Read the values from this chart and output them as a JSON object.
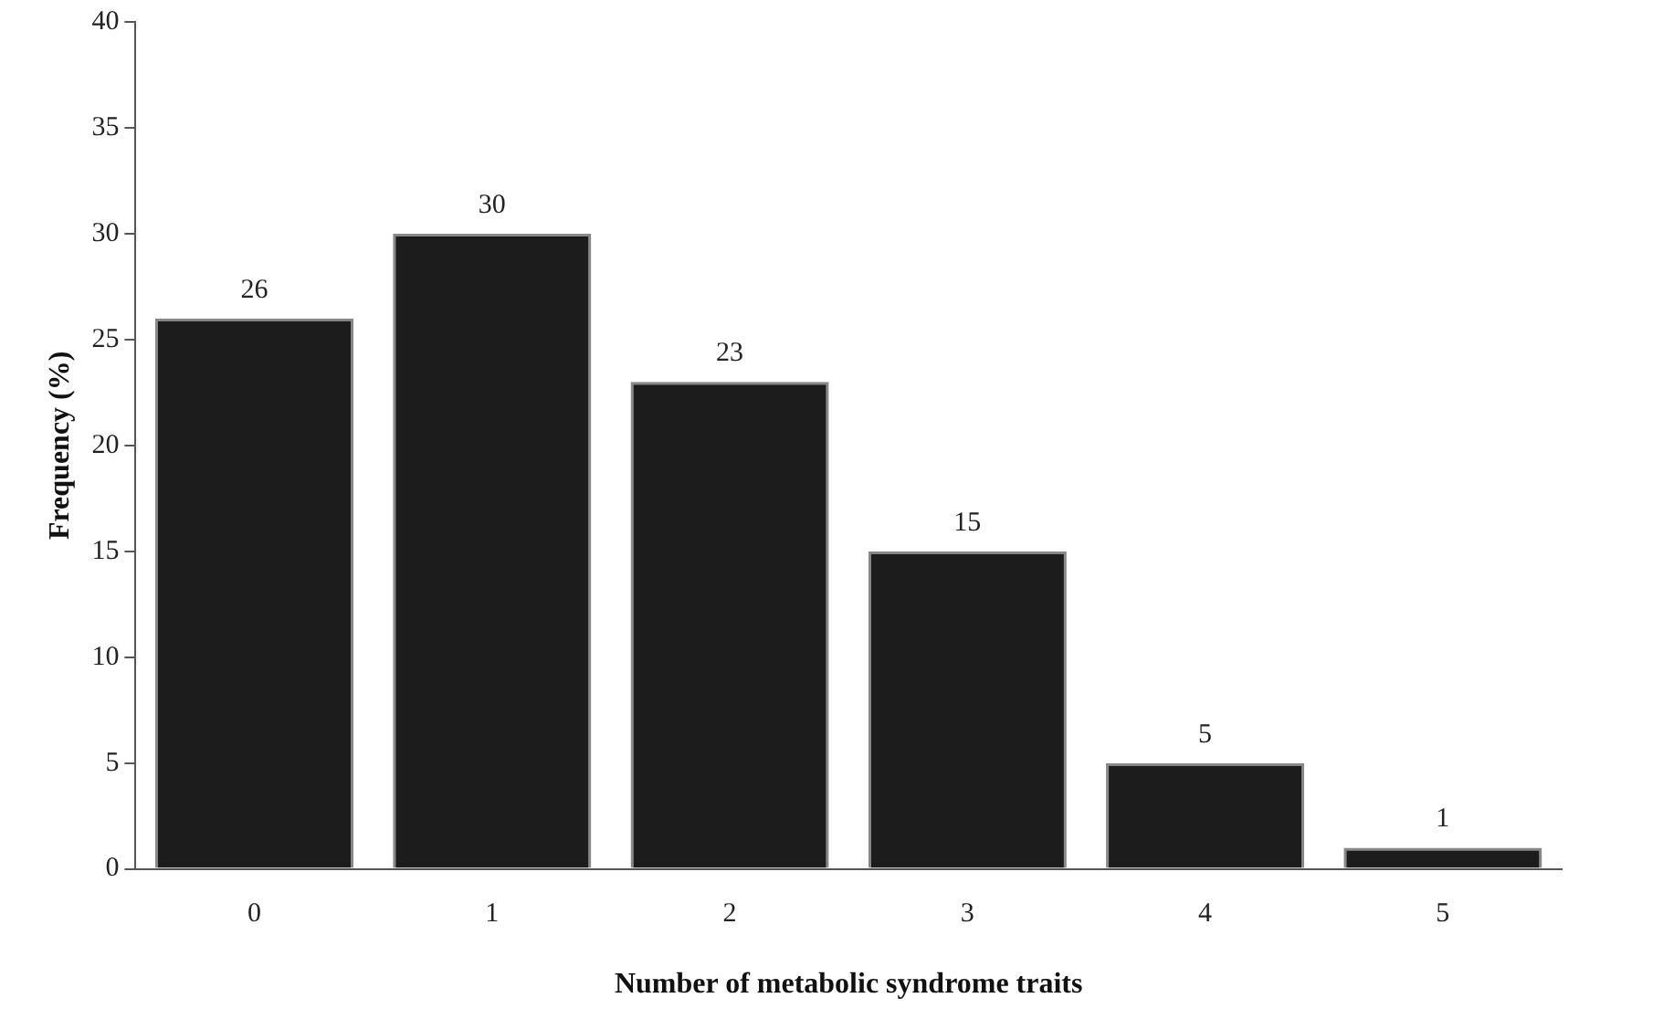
{
  "chart_data": {
    "type": "bar",
    "xlabel": "Number of metabolic syndrome traits",
    "ylabel": "Frequency (%)",
    "categories": [
      "0",
      "1",
      "2",
      "3",
      "4",
      "5"
    ],
    "values": [
      26,
      30,
      23,
      15,
      5,
      1
    ],
    "color": "#1c1c1c",
    "ylim": [
      0,
      40
    ],
    "yticks": [
      0,
      5,
      10,
      15,
      20,
      25,
      30,
      35,
      40
    ],
    "grid": false,
    "legend": false,
    "data_labels": true
  }
}
